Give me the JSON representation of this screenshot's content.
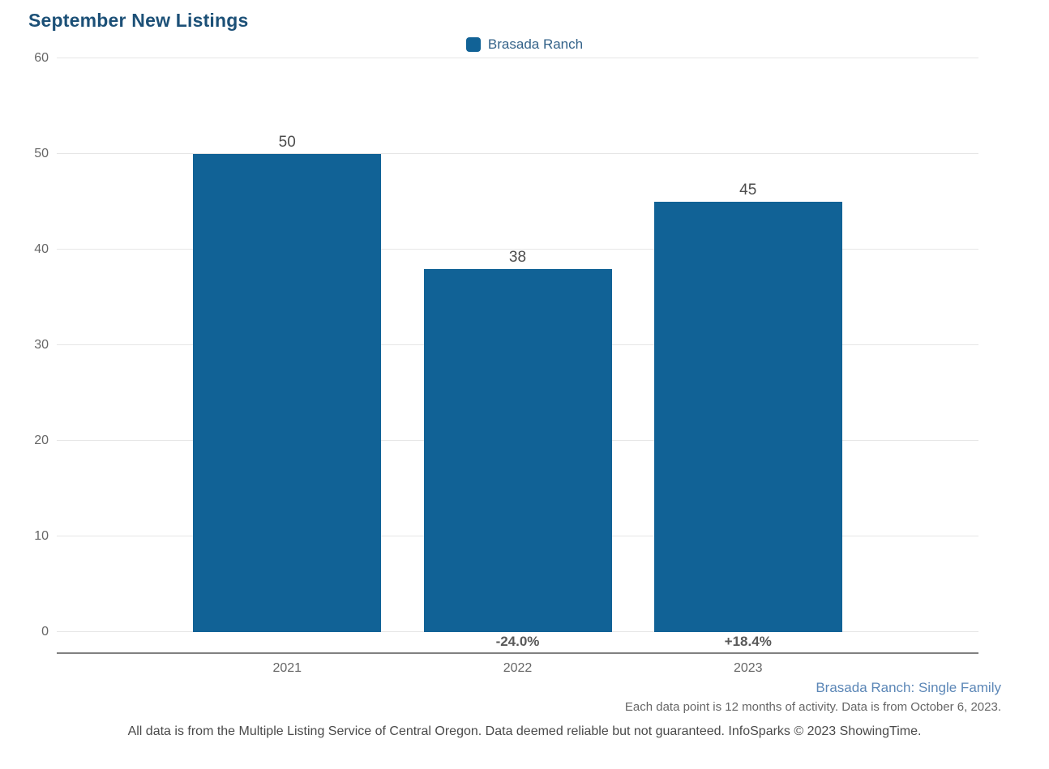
{
  "header": {
    "title": "September New Listings"
  },
  "legend": {
    "position": "top-center",
    "items": [
      {
        "label": "Brasada Ranch",
        "swatch_color": "#116296"
      }
    ]
  },
  "chart_data": {
    "type": "bar",
    "title": "September New Listings",
    "categories": [
      "2021",
      "2022",
      "2023"
    ],
    "series": [
      {
        "name": "Brasada Ranch",
        "values": [
          50,
          38,
          45
        ]
      }
    ],
    "value_labels": [
      "50",
      "38",
      "45"
    ],
    "pct_change_labels": [
      "",
      "-24.0%",
      "+18.4%"
    ],
    "xlabel": "",
    "ylabel": "",
    "ylim": [
      0,
      60
    ],
    "yticks": [
      0,
      10,
      20,
      30,
      40,
      50,
      60
    ],
    "grid": true,
    "legend_position": "top-center",
    "bar_color": "#116296"
  },
  "footer": {
    "series_note": "Brasada Ranch: Single Family",
    "data_note": "Each data point is 12 months of activity. Data is from October 6, 2023.",
    "disclaimer": "All data is from the Multiple Listing Service of Central Oregon. Data deemed reliable but not guaranteed. InfoSparks © 2023 ShowingTime."
  },
  "colors": {
    "bar": "#116296",
    "title_text": "#1C5077",
    "legend_label": "#336289",
    "footer_series_text": "#5C87B7",
    "gridline": "#E6E6E6",
    "axis_line": "#818181",
    "tick_label": "#666666",
    "value_label": "#4D4D4D",
    "pct_label": "#595959",
    "disclaimer_text": "#4A4A4A"
  }
}
